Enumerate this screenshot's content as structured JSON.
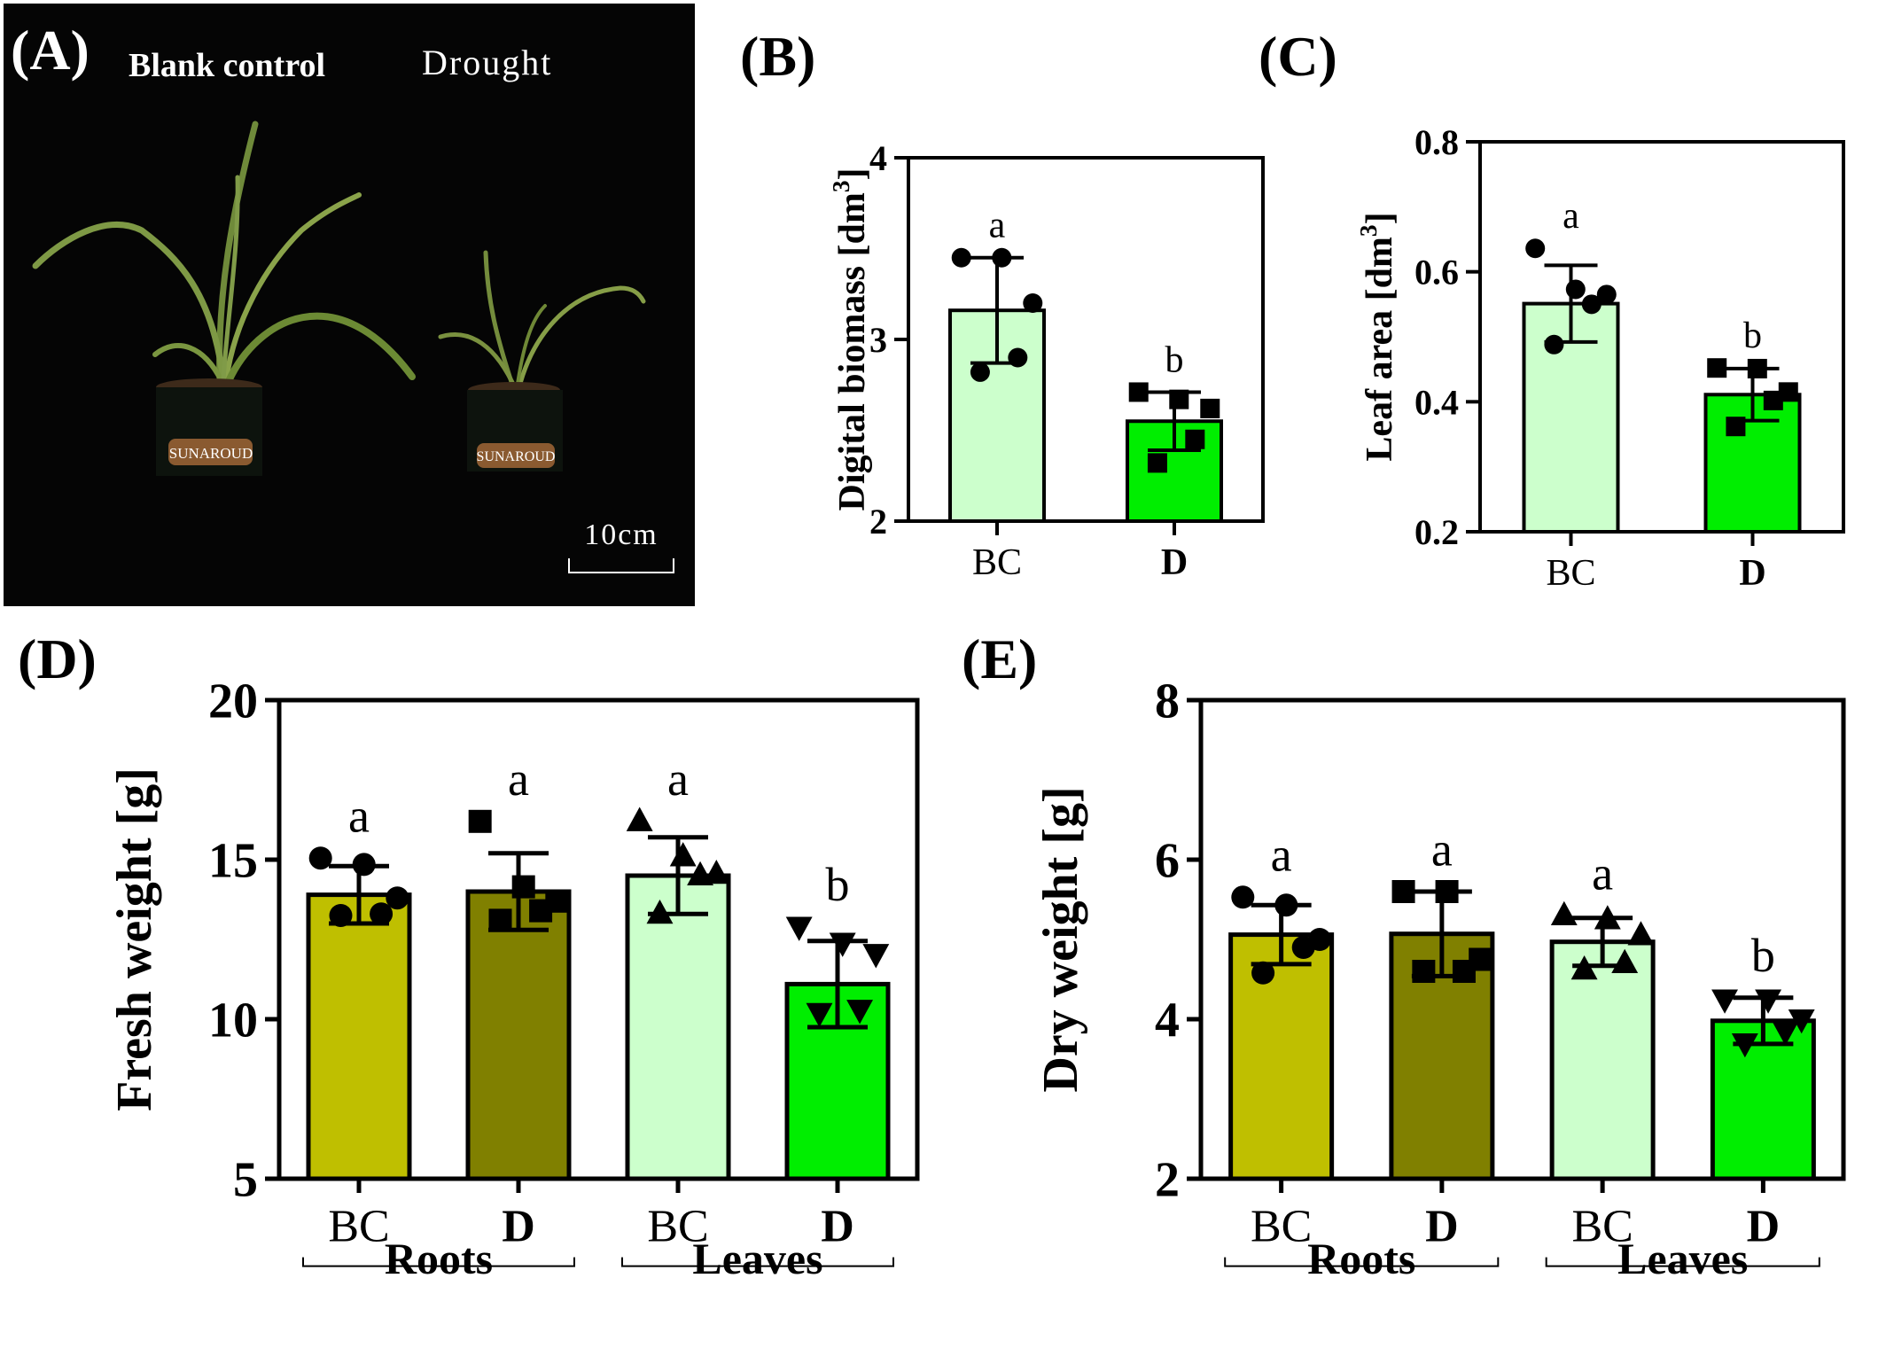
{
  "photo": {
    "panel_label": "(A)",
    "left_label": "Blank control",
    "right_label": "Drought",
    "scale_bar": "10cm",
    "pot_label_left": "SUNAROUD",
    "pot_label_right": "SUNAROUD"
  },
  "chart_data": [
    {
      "id": "B",
      "panel_label": "(B)",
      "type": "bar",
      "ylabel": "Digital biomass [dm",
      "ylabel_sup": "3",
      "ylabel_end": "]",
      "ylim": [
        2,
        4
      ],
      "yticks": [
        2,
        3,
        4
      ],
      "yticks_labels": [
        "2",
        "3",
        "4"
      ],
      "categories": [
        "BC",
        "D"
      ],
      "category_bold": [
        false,
        true
      ],
      "colors": [
        "#ccffcc",
        "#00ee00"
      ],
      "markers": [
        "circle",
        "square"
      ],
      "values": [
        3.16,
        2.55
      ],
      "errors": [
        0.29,
        0.16
      ],
      "significance": [
        "a",
        "b"
      ],
      "points": [
        [
          3.45,
          3.45,
          3.2,
          2.9,
          2.82
        ],
        [
          2.71,
          2.67,
          2.62,
          2.45,
          2.32
        ]
      ],
      "groups": []
    },
    {
      "id": "C",
      "panel_label": "(C)",
      "type": "bar",
      "ylabel": "Leaf area [dm",
      "ylabel_sup": "3",
      "ylabel_end": "]",
      "ylim": [
        0.2,
        0.8
      ],
      "yticks": [
        0.2,
        0.4,
        0.6,
        0.8
      ],
      "yticks_labels": [
        "0.2",
        "0.4",
        "0.6",
        "0.8"
      ],
      "categories": [
        "BC",
        "D"
      ],
      "category_bold": [
        false,
        true
      ],
      "colors": [
        "#ccffcc",
        "#00ee00"
      ],
      "markers": [
        "circle",
        "square"
      ],
      "values": [
        0.551,
        0.411
      ],
      "errors": [
        0.059,
        0.04
      ],
      "significance": [
        "a",
        "b"
      ],
      "points": [
        [
          0.636,
          0.573,
          0.565,
          0.55,
          0.488
        ],
        [
          0.452,
          0.451,
          0.415,
          0.402,
          0.362
        ]
      ],
      "groups": []
    },
    {
      "id": "D",
      "panel_label": "(D)",
      "type": "bar",
      "ylabel": "Fresh weight [g]",
      "ylim": [
        5,
        20
      ],
      "yticks": [
        5,
        10,
        15,
        20
      ],
      "yticks_labels": [
        "5",
        "10",
        "15",
        "20"
      ],
      "categories": [
        "BC",
        "D",
        "BC",
        "D"
      ],
      "category_bold": [
        false,
        true,
        false,
        true
      ],
      "colors": [
        "#bfbf00",
        "#808000",
        "#ccffcc",
        "#00ee00"
      ],
      "markers": [
        "circle",
        "square",
        "triangle",
        "triangle-down"
      ],
      "values": [
        13.9,
        14.0,
        14.5,
        11.1
      ],
      "errors": [
        0.9,
        1.2,
        1.2,
        1.35
      ],
      "significance": [
        "a",
        "a",
        "a",
        "b"
      ],
      "points": [
        [
          15.05,
          14.85,
          13.8,
          13.3,
          13.25
        ],
        [
          16.2,
          14.15,
          13.7,
          13.4,
          13.1
        ],
        [
          16.2,
          15.1,
          14.55,
          14.5,
          13.3
        ],
        [
          12.9,
          12.4,
          12.05,
          10.3,
          10.2
        ]
      ],
      "groups": [
        {
          "label": "Roots",
          "span": [
            0,
            1
          ]
        },
        {
          "label": "Leaves",
          "span": [
            2,
            3
          ]
        }
      ]
    },
    {
      "id": "E",
      "panel_label": "(E)",
      "type": "bar",
      "ylabel": "Dry weight [g]",
      "ylim": [
        2,
        8
      ],
      "yticks": [
        2,
        4,
        6,
        8
      ],
      "yticks_labels": [
        "2",
        "4",
        "6",
        "8"
      ],
      "categories": [
        "BC",
        "D",
        "BC",
        "D"
      ],
      "category_bold": [
        false,
        true,
        false,
        true
      ],
      "colors": [
        "#bfbf00",
        "#808000",
        "#ccffcc",
        "#00ee00"
      ],
      "markers": [
        "circle",
        "square",
        "triangle",
        "triangle-down"
      ],
      "values": [
        5.06,
        5.07,
        4.97,
        3.98
      ],
      "errors": [
        0.37,
        0.53,
        0.3,
        0.29
      ],
      "significance": [
        "a",
        "a",
        "a",
        "b"
      ],
      "points": [
        [
          5.53,
          5.43,
          5.0,
          4.9,
          4.58
        ],
        [
          5.6,
          5.6,
          4.75,
          4.6,
          4.6
        ],
        [
          5.3,
          5.25,
          5.05,
          4.7,
          4.62
        ],
        [
          4.25,
          4.25,
          4.0,
          3.85,
          3.7
        ]
      ],
      "groups": [
        {
          "label": "Roots",
          "span": [
            0,
            1
          ]
        },
        {
          "label": "Leaves",
          "span": [
            2,
            3
          ]
        }
      ]
    }
  ]
}
